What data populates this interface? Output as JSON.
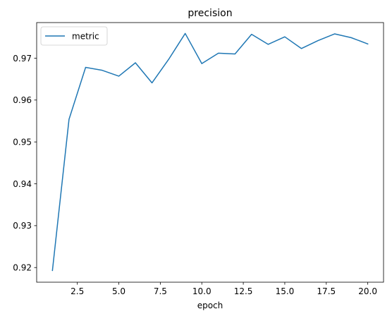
{
  "chart_data": {
    "type": "line",
    "title": "precision",
    "xlabel": "epoch",
    "ylabel": "",
    "xlim": [
      0.05,
      20.95
    ],
    "ylim": [
      0.9165,
      0.9785
    ],
    "xticks": [
      2.5,
      5.0,
      7.5,
      10.0,
      12.5,
      15.0,
      17.5,
      20.0
    ],
    "xtick_labels": [
      "2.5",
      "5.0",
      "7.5",
      "10.0",
      "12.5",
      "15.0",
      "17.5",
      "20.0"
    ],
    "yticks": [
      0.92,
      0.93,
      0.94,
      0.95,
      0.96,
      0.97
    ],
    "ytick_labels": [
      "0.92",
      "0.93",
      "0.94",
      "0.95",
      "0.96",
      "0.97"
    ],
    "grid": false,
    "legend_position": "upper-left",
    "series": [
      {
        "name": "metric",
        "color": "#1f77b4",
        "x": [
          1,
          2,
          3,
          4,
          5,
          6,
          7,
          8,
          9,
          10,
          11,
          12,
          13,
          14,
          15,
          16,
          17,
          18,
          19,
          20
        ],
        "values": [
          0.9193,
          0.9554,
          0.9678,
          0.9671,
          0.9657,
          0.9689,
          0.9641,
          0.9697,
          0.9759,
          0.9687,
          0.9712,
          0.971,
          0.9757,
          0.9733,
          0.9751,
          0.9723,
          0.9742,
          0.9758,
          0.9749,
          0.9734
        ]
      }
    ]
  }
}
